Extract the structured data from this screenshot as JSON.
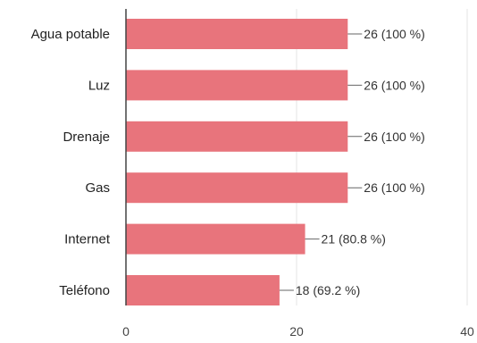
{
  "chart_data": {
    "type": "bar",
    "orientation": "horizontal",
    "categories": [
      "Agua potable",
      "Luz",
      "Drenaje",
      "Gas",
      "Internet",
      "Teléfono"
    ],
    "values": [
      26,
      26,
      26,
      26,
      21,
      18
    ],
    "data_labels": [
      "26 (100 %)",
      "26 (100 %)",
      "26 (100 %)",
      "26 (100 %)",
      "21 (80.8 %)",
      "18 (69.2 %)"
    ],
    "xlim": [
      0,
      40
    ],
    "x_ticks": [
      0,
      20,
      40
    ],
    "x_tick_labels": [
      "0",
      "20",
      "40"
    ],
    "grid": "vertical",
    "bar_color": "#e8747c",
    "gridline_color": "#e5e5e5",
    "axis_color": "#444444",
    "leader_color": "#666666"
  }
}
